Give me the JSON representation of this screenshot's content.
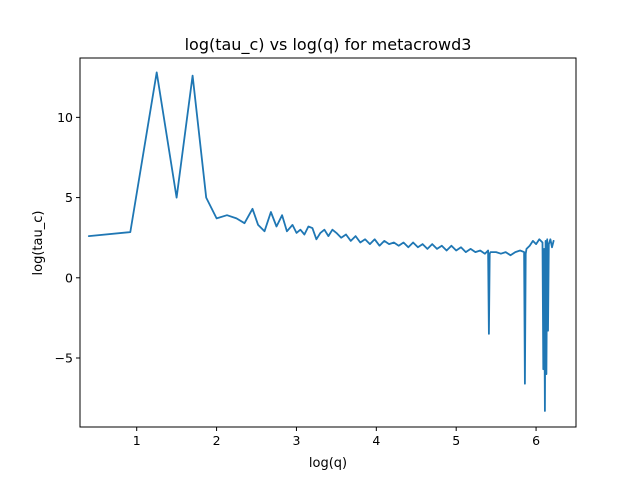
{
  "chart_data": {
    "type": "line",
    "title": "log(tau_c) vs log(q) for metacrowd3",
    "xlabel": "log(q)",
    "ylabel": "log(tau_c)",
    "xlim": [
      0.29,
      6.5
    ],
    "ylim": [
      -9.3,
      13.7
    ],
    "xticks": [
      1,
      2,
      3,
      4,
      5,
      6
    ],
    "yticks": [
      -5,
      0,
      5,
      10
    ],
    "grid": false,
    "legend": "none",
    "series": [
      {
        "color": "#1f77b4",
        "x": [
          0.4,
          0.92,
          1.25,
          1.5,
          1.7,
          1.87,
          2.0,
          2.13,
          2.25,
          2.35,
          2.45,
          2.52,
          2.6,
          2.68,
          2.75,
          2.82,
          2.88,
          2.95,
          3.0,
          3.05,
          3.1,
          3.15,
          3.2,
          3.25,
          3.3,
          3.35,
          3.4,
          3.45,
          3.5,
          3.56,
          3.62,
          3.68,
          3.74,
          3.8,
          3.86,
          3.92,
          3.98,
          4.04,
          4.1,
          4.16,
          4.22,
          4.28,
          4.34,
          4.4,
          4.46,
          4.52,
          4.58,
          4.64,
          4.7,
          4.76,
          4.82,
          4.88,
          4.94,
          5.0,
          5.06,
          5.12,
          5.18,
          5.24,
          5.3,
          5.36,
          5.4,
          5.41,
          5.42,
          5.43,
          5.5,
          5.56,
          5.62,
          5.68,
          5.74,
          5.8,
          5.85,
          5.86,
          5.87,
          5.88,
          5.92,
          5.96,
          6.0,
          6.04,
          6.08,
          6.09,
          6.1,
          6.11,
          6.12,
          6.13,
          6.14,
          6.15,
          6.16,
          6.18,
          6.2,
          6.22
        ],
        "y": [
          2.6,
          2.85,
          12.8,
          5.0,
          12.6,
          5.0,
          3.7,
          3.9,
          3.7,
          3.4,
          4.3,
          3.3,
          2.9,
          4.1,
          3.2,
          3.9,
          2.9,
          3.3,
          2.8,
          3.0,
          2.7,
          3.2,
          3.1,
          2.4,
          2.8,
          3.0,
          2.6,
          3.0,
          2.8,
          2.5,
          2.7,
          2.3,
          2.6,
          2.2,
          2.4,
          2.1,
          2.4,
          2.0,
          2.3,
          2.1,
          2.2,
          2.0,
          2.2,
          1.9,
          2.2,
          1.9,
          2.1,
          1.8,
          2.1,
          1.8,
          2.0,
          1.7,
          2.0,
          1.7,
          1.9,
          1.6,
          1.8,
          1.6,
          1.7,
          1.5,
          1.7,
          -3.5,
          1.5,
          1.6,
          1.6,
          1.5,
          1.6,
          1.4,
          1.6,
          1.7,
          1.6,
          -6.6,
          1.5,
          1.8,
          2.0,
          2.3,
          2.1,
          2.4,
          2.2,
          -5.7,
          1.8,
          -8.3,
          2.3,
          -6.0,
          2.4,
          -3.3,
          2.1,
          2.4,
          1.9,
          2.3
        ]
      }
    ]
  }
}
